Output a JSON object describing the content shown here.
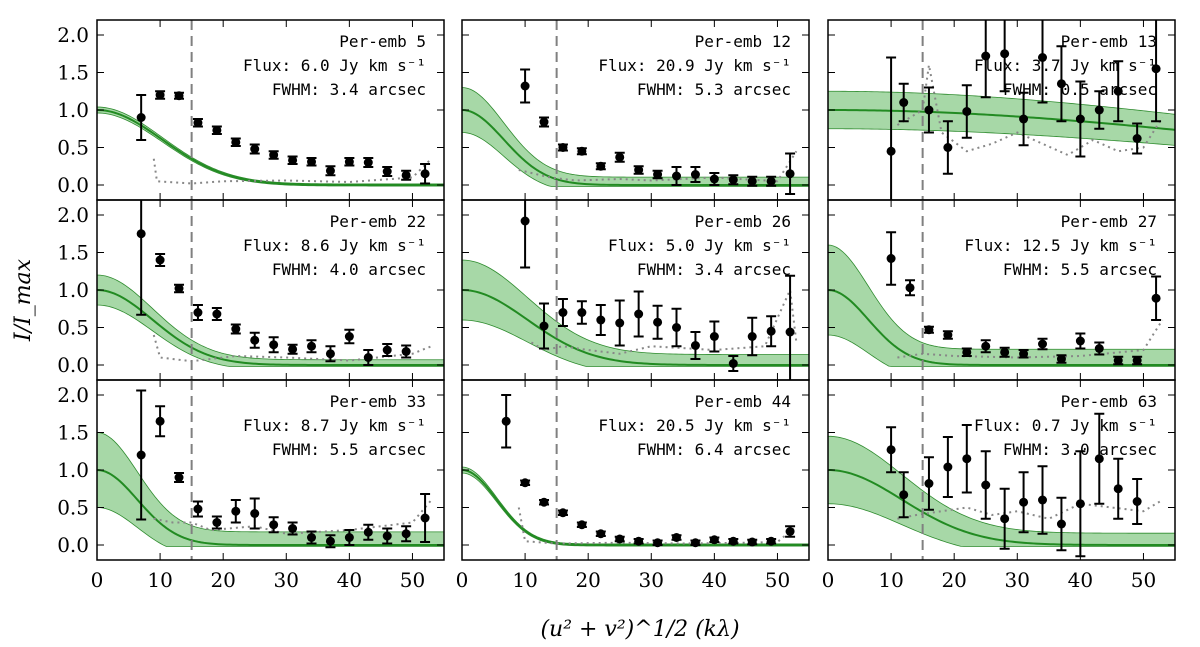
{
  "chart_data": {
    "type": "scatter",
    "xlabel": "(u² + v²)^1/2 (kλ)",
    "ylabel": "I/I_max",
    "xlim": [
      0,
      55
    ],
    "ylim": [
      -0.2,
      2.2
    ],
    "xticks": [
      "0",
      "10",
      "20",
      "30",
      "40",
      "50"
    ],
    "yticks": [
      "0.0",
      "0.5",
      "1.0",
      "1.5",
      "2.0"
    ],
    "vline_x": 15,
    "panels": [
      {
        "name": "Per-emb 5",
        "flux": "Flux: 6.0 Jy km s⁻¹",
        "fwhm": "FWHM: 3.4 arcsec",
        "model": {
          "fwhm_arcsec": 3.4,
          "band": 0.04
        },
        "points": [
          [
            7,
            0.9,
            0.3
          ],
          [
            10,
            1.2,
            0.05
          ],
          [
            13,
            1.19,
            0.04
          ],
          [
            16,
            0.83,
            0.05
          ],
          [
            19,
            0.73,
            0.05
          ],
          [
            22,
            0.57,
            0.05
          ],
          [
            25,
            0.48,
            0.06
          ],
          [
            28,
            0.4,
            0.05
          ],
          [
            31,
            0.33,
            0.05
          ],
          [
            34,
            0.31,
            0.05
          ],
          [
            37,
            0.19,
            0.06
          ],
          [
            40,
            0.31,
            0.05
          ],
          [
            43,
            0.3,
            0.06
          ],
          [
            46,
            0.18,
            0.06
          ],
          [
            49,
            0.13,
            0.06
          ],
          [
            52,
            0.15,
            0.13
          ]
        ],
        "noise": [
          [
            9,
            0.35
          ],
          [
            9.5,
            0.05
          ],
          [
            15,
            0.02
          ],
          [
            20,
            0.05
          ],
          [
            30,
            0.06
          ],
          [
            40,
            0.04
          ],
          [
            50,
            0.1
          ],
          [
            53,
            0.35
          ]
        ]
      },
      {
        "name": "Per-emb 12",
        "flux": "Flux: 20.9 Jy km s⁻¹",
        "fwhm": "FWHM: 5.3 arcsec",
        "model": {
          "fwhm_arcsec": 5.3,
          "band": 0.3
        },
        "points": [
          [
            10,
            1.32,
            0.22
          ],
          [
            13,
            0.84,
            0.06
          ],
          [
            16,
            0.5,
            0.04
          ],
          [
            19,
            0.45,
            0.04
          ],
          [
            22,
            0.25,
            0.04
          ],
          [
            25,
            0.37,
            0.06
          ],
          [
            28,
            0.2,
            0.05
          ],
          [
            31,
            0.14,
            0.05
          ],
          [
            34,
            0.12,
            0.12
          ],
          [
            37,
            0.14,
            0.1
          ],
          [
            40,
            0.08,
            0.08
          ],
          [
            43,
            0.07,
            0.06
          ],
          [
            46,
            0.05,
            0.06
          ],
          [
            49,
            0.05,
            0.06
          ],
          [
            52,
            0.15,
            0.27
          ]
        ],
        "noise": [
          [
            9,
            0.2
          ],
          [
            14,
            0.1
          ],
          [
            18,
            0.06
          ],
          [
            25,
            0.08
          ],
          [
            30,
            0.06
          ],
          [
            40,
            0.1
          ],
          [
            50,
            0.05
          ],
          [
            53,
            0.45
          ]
        ]
      },
      {
        "name": "Per-emb 13",
        "flux": "Flux: 3.7 Jy km s⁻¹",
        "fwhm": "FWHM: 0.5 arcsec",
        "model": {
          "fwhm_arcsec": 0.5,
          "band": 0.25
        },
        "points": [
          [
            10,
            0.45,
            1.25
          ],
          [
            12,
            1.1,
            0.25
          ],
          [
            16,
            1.0,
            0.3
          ],
          [
            19,
            0.5,
            0.35
          ],
          [
            22,
            0.98,
            0.35
          ],
          [
            25,
            1.72,
            0.55
          ],
          [
            28,
            1.75,
            0.5
          ],
          [
            31,
            0.88,
            0.35
          ],
          [
            34,
            1.7,
            0.6
          ],
          [
            37,
            1.35,
            0.5
          ],
          [
            40,
            0.88,
            0.5
          ],
          [
            43,
            1.0,
            0.25
          ],
          [
            46,
            1.25,
            0.4
          ],
          [
            49,
            0.62,
            0.2
          ],
          [
            52,
            1.55,
            0.7
          ]
        ],
        "noise": [
          [
            11,
            0.8
          ],
          [
            13,
            0.9
          ],
          [
            15,
            1.0
          ],
          [
            16,
            1.6
          ],
          [
            18,
            0.7
          ],
          [
            22,
            0.45
          ],
          [
            26,
            0.55
          ],
          [
            30,
            0.7
          ],
          [
            34,
            0.55
          ],
          [
            38,
            0.4
          ],
          [
            42,
            0.6
          ],
          [
            46,
            0.45
          ],
          [
            50,
            0.5
          ],
          [
            53,
            0.9
          ]
        ]
      },
      {
        "name": "Per-emb 22",
        "flux": "Flux: 8.6 Jy km s⁻¹",
        "fwhm": "FWHM: 4.0 arcsec",
        "model": {
          "fwhm_arcsec": 4.0,
          "band": 0.2
        },
        "points": [
          [
            7,
            1.75,
            1.08
          ],
          [
            10,
            1.4,
            0.08
          ],
          [
            13,
            1.02,
            0.05
          ],
          [
            16,
            0.7,
            0.1
          ],
          [
            19,
            0.68,
            0.08
          ],
          [
            22,
            0.48,
            0.06
          ],
          [
            25,
            0.33,
            0.1
          ],
          [
            28,
            0.27,
            0.1
          ],
          [
            31,
            0.21,
            0.06
          ],
          [
            34,
            0.25,
            0.08
          ],
          [
            37,
            0.15,
            0.1
          ],
          [
            40,
            0.38,
            0.09
          ],
          [
            43,
            0.1,
            0.1
          ],
          [
            46,
            0.2,
            0.08
          ],
          [
            49,
            0.18,
            0.08
          ]
        ],
        "noise": [
          [
            9,
            0.4
          ],
          [
            10,
            0.1
          ],
          [
            15,
            0.05
          ],
          [
            22,
            0.12
          ],
          [
            30,
            0.1
          ],
          [
            40,
            0.06
          ],
          [
            50,
            0.15
          ],
          [
            53,
            0.25
          ]
        ]
      },
      {
        "name": "Per-emb 26",
        "flux": "Flux: 5.0 Jy km s⁻¹",
        "fwhm": "FWHM: 3.4 arcsec",
        "model": {
          "fwhm_arcsec": 3.4,
          "band": 0.4
        },
        "points": [
          [
            10,
            1.92,
            0.62
          ],
          [
            13,
            0.52,
            0.3
          ],
          [
            16,
            0.7,
            0.18
          ],
          [
            19,
            0.7,
            0.15
          ],
          [
            22,
            0.6,
            0.2
          ],
          [
            25,
            0.56,
            0.3
          ],
          [
            28,
            0.68,
            0.3
          ],
          [
            31,
            0.57,
            0.22
          ],
          [
            34,
            0.5,
            0.25
          ],
          [
            37,
            0.26,
            0.18
          ],
          [
            40,
            0.38,
            0.2
          ],
          [
            43,
            0.02,
            0.1
          ],
          [
            46,
            0.38,
            0.25
          ],
          [
            49,
            0.45,
            0.2
          ],
          [
            52,
            0.44,
            0.75
          ]
        ],
        "noise": [
          [
            11,
            0.3
          ],
          [
            13,
            0.2
          ],
          [
            16,
            0.25
          ],
          [
            20,
            0.2
          ],
          [
            25,
            0.15
          ],
          [
            30,
            0.25
          ],
          [
            40,
            0.2
          ],
          [
            48,
            0.25
          ],
          [
            52,
            1.0
          ],
          [
            53,
            0.3
          ]
        ]
      },
      {
        "name": "Per-emb 27",
        "flux": "Flux: 12.5 Jy km s⁻¹",
        "fwhm": "FWHM: 5.5 arcsec",
        "model": {
          "fwhm_arcsec": 5.5,
          "band": 0.6
        },
        "points": [
          [
            10,
            1.42,
            0.35
          ],
          [
            13,
            1.03,
            0.1
          ],
          [
            16,
            0.47,
            0.04
          ],
          [
            19,
            0.4,
            0.05
          ],
          [
            22,
            0.17,
            0.05
          ],
          [
            25,
            0.25,
            0.08
          ],
          [
            28,
            0.17,
            0.06
          ],
          [
            31,
            0.15,
            0.05
          ],
          [
            34,
            0.28,
            0.07
          ],
          [
            37,
            0.08,
            0.05
          ],
          [
            40,
            0.32,
            0.1
          ],
          [
            43,
            0.22,
            0.08
          ],
          [
            46,
            0.06,
            0.05
          ],
          [
            49,
            0.06,
            0.05
          ],
          [
            52,
            0.89,
            0.29
          ]
        ],
        "noise": [
          [
            11,
            0.1
          ],
          [
            15,
            0.15
          ],
          [
            20,
            0.12
          ],
          [
            30,
            0.1
          ],
          [
            40,
            0.12
          ],
          [
            50,
            0.2
          ],
          [
            53,
            0.6
          ]
        ]
      },
      {
        "name": "Per-emb 33",
        "flux": "Flux: 8.7 Jy km s⁻¹",
        "fwhm": "FWHM: 5.5 arcsec",
        "model": {
          "fwhm_arcsec": 5.5,
          "band": 0.5
        },
        "points": [
          [
            7,
            1.2,
            0.86
          ],
          [
            10,
            1.65,
            0.2
          ],
          [
            13,
            0.9,
            0.06
          ],
          [
            16,
            0.48,
            0.1
          ],
          [
            19,
            0.3,
            0.08
          ],
          [
            22,
            0.45,
            0.15
          ],
          [
            25,
            0.42,
            0.2
          ],
          [
            28,
            0.27,
            0.1
          ],
          [
            31,
            0.22,
            0.08
          ],
          [
            34,
            0.1,
            0.08
          ],
          [
            37,
            0.05,
            0.08
          ],
          [
            40,
            0.1,
            0.1
          ],
          [
            43,
            0.17,
            0.1
          ],
          [
            46,
            0.12,
            0.1
          ],
          [
            49,
            0.15,
            0.1
          ],
          [
            52,
            0.36,
            0.32
          ]
        ],
        "noise": [
          [
            9,
            0.35
          ],
          [
            12,
            0.3
          ],
          [
            15,
            0.3
          ],
          [
            18,
            0.2
          ],
          [
            25,
            0.25
          ],
          [
            30,
            0.15
          ],
          [
            40,
            0.2
          ],
          [
            50,
            0.3
          ],
          [
            53,
            0.6
          ]
        ]
      },
      {
        "name": "Per-emb 44",
        "flux": "Flux: 20.5 Jy km s⁻¹",
        "fwhm": "FWHM: 6.4 arcsec",
        "model": {
          "fwhm_arcsec": 6.4,
          "band": 0.04
        },
        "points": [
          [
            7,
            1.65,
            0.35
          ],
          [
            10,
            0.83,
            0.03
          ],
          [
            13,
            0.57,
            0.03
          ],
          [
            16,
            0.43,
            0.03
          ],
          [
            19,
            0.27,
            0.03
          ],
          [
            22,
            0.15,
            0.03
          ],
          [
            25,
            0.08,
            0.03
          ],
          [
            28,
            0.05,
            0.03
          ],
          [
            31,
            0.03,
            0.03
          ],
          [
            34,
            0.1,
            0.03
          ],
          [
            37,
            0.03,
            0.03
          ],
          [
            40,
            0.07,
            0.03
          ],
          [
            43,
            0.05,
            0.03
          ],
          [
            46,
            0.04,
            0.03
          ],
          [
            49,
            0.05,
            0.03
          ],
          [
            52,
            0.18,
            0.07
          ]
        ],
        "noise": [
          [
            9,
            0.5
          ],
          [
            10,
            0.05
          ],
          [
            15,
            0.02
          ],
          [
            25,
            0.03
          ],
          [
            35,
            0.02
          ],
          [
            45,
            0.03
          ],
          [
            50,
            0.04
          ],
          [
            53,
            0.25
          ]
        ]
      },
      {
        "name": "Per-emb 63",
        "flux": "Flux: 0.7 Jy km s⁻¹",
        "fwhm": "FWHM: 3.0 arcsec",
        "model": {
          "fwhm_arcsec": 3.0,
          "band": 0.45
        },
        "points": [
          [
            10,
            1.27,
            0.3
          ],
          [
            12,
            0.67,
            0.3
          ],
          [
            16,
            0.82,
            0.35
          ],
          [
            19,
            1.04,
            0.4
          ],
          [
            22,
            1.15,
            0.45
          ],
          [
            25,
            0.8,
            0.45
          ],
          [
            28,
            0.35,
            0.4
          ],
          [
            31,
            0.57,
            0.4
          ],
          [
            34,
            0.6,
            0.45
          ],
          [
            37,
            0.28,
            0.35
          ],
          [
            40,
            0.55,
            0.7
          ],
          [
            43,
            1.15,
            0.6
          ],
          [
            46,
            0.75,
            0.4
          ],
          [
            49,
            0.58,
            0.3
          ]
        ],
        "noise": [
          [
            11,
            0.35
          ],
          [
            14,
            0.4
          ],
          [
            18,
            0.45
          ],
          [
            22,
            0.5
          ],
          [
            26,
            0.4
          ],
          [
            30,
            0.45
          ],
          [
            35,
            0.35
          ],
          [
            40,
            0.55
          ],
          [
            45,
            0.5
          ],
          [
            50,
            0.45
          ],
          [
            53,
            0.6
          ]
        ]
      }
    ]
  }
}
